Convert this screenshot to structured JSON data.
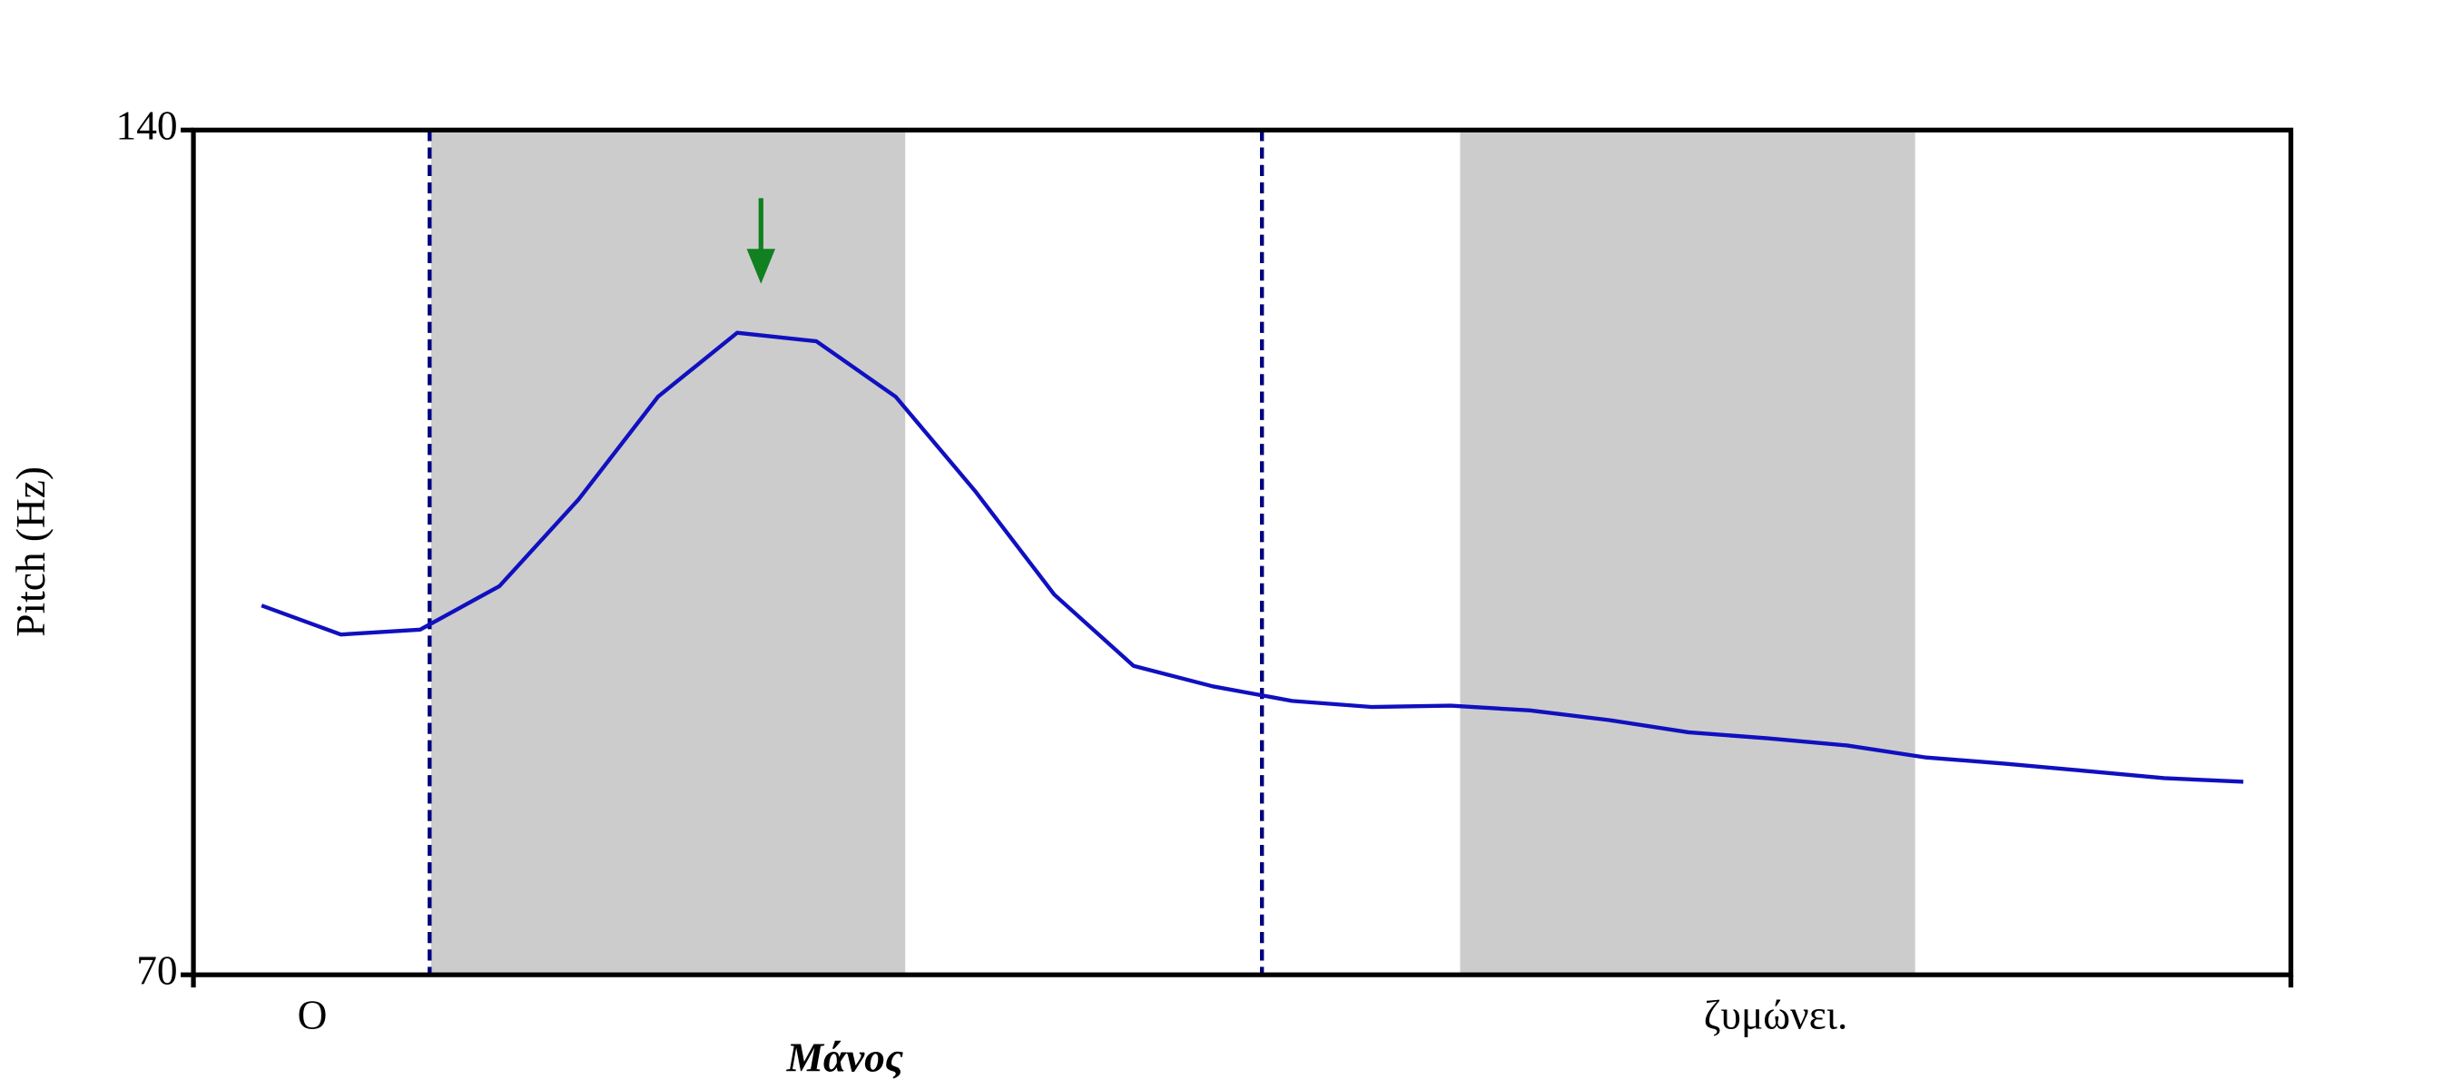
{
  "chart_data": {
    "type": "line",
    "y_label": "Pitch (Hz)",
    "ylim": [
      70,
      140
    ],
    "yticks": [
      70,
      140
    ],
    "series": [
      {
        "color": "#1010c0",
        "values": [
          100.6,
          98.2,
          98.6,
          102.2,
          109.4,
          117.9,
          123.2,
          122.5,
          117.9,
          110.1,
          101.5,
          95.6,
          93.9,
          92.7,
          92.2,
          92.3,
          91.9,
          91.1,
          90.1,
          89.6,
          89.0,
          88.0,
          87.5,
          86.9,
          86.3,
          86.0
        ]
      }
    ],
    "annotations": [
      "Ο",
      "Μάνος",
      "ζυμώνει."
    ]
  }
}
